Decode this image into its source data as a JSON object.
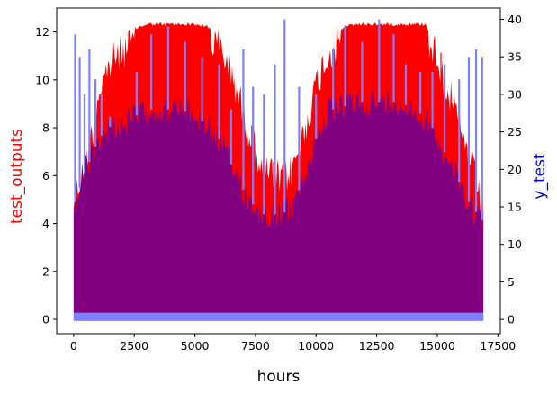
{
  "chart_data": {
    "type": "line",
    "title": "",
    "xlabel": "hours",
    "ylabel_left": "test_outputs",
    "ylabel_right": "y_test",
    "xlim": [
      -700,
      17600
    ],
    "ylim_left": [
      -0.6,
      13.0
    ],
    "ylim_right": [
      -1.9,
      41.5
    ],
    "x_ticks": [
      "0",
      "2500",
      "5000",
      "7500",
      "10000",
      "12500",
      "15000",
      "17500"
    ],
    "y_ticks_left": [
      "0",
      "2",
      "4",
      "6",
      "8",
      "10",
      "12"
    ],
    "y_ticks_right": [
      "0",
      "5",
      "10",
      "15",
      "20",
      "25",
      "30",
      "35",
      "40"
    ],
    "grid": false,
    "legend": "none",
    "colors": {
      "test_outputs": "#ff0000",
      "y_test": "#8080ff",
      "overlap": "#800080",
      "left_label": "#ff0000",
      "right_label": "#0000cc"
    },
    "series": [
      {
        "axis": "left",
        "color": "#ff0000",
        "x": [
          0,
          200,
          500,
          800,
          1000,
          1300,
          1600,
          2000,
          2500,
          3000,
          3500,
          4000,
          4500,
          5000,
          5500,
          6000,
          6300,
          6600,
          6900,
          7200,
          7500,
          7800,
          8200,
          8600,
          9000,
          9400,
          9800,
          10200,
          10600,
          11000,
          11500,
          12000,
          12500,
          13000,
          13500,
          14000,
          14500,
          14900,
          15200,
          15500,
          15800,
          16100,
          16400,
          16700,
          16900
        ],
        "upper": [
          5.5,
          6.2,
          7.2,
          8.5,
          10.0,
          10.8,
          11.4,
          11.8,
          12.2,
          12.4,
          12.4,
          12.4,
          12.4,
          12.4,
          12.3,
          12.0,
          11.4,
          10.6,
          9.6,
          8.6,
          7.6,
          7.0,
          6.6,
          6.4,
          6.8,
          8.0,
          9.6,
          11.0,
          11.8,
          12.2,
          12.4,
          12.4,
          12.4,
          12.4,
          12.4,
          12.4,
          12.4,
          11.8,
          11.0,
          10.0,
          9.0,
          8.0,
          7.0,
          6.0,
          5.2
        ],
        "lower": [
          0.2,
          0.3,
          0.4,
          0.5,
          0.6,
          0.7,
          0.8,
          0.9,
          1.0,
          1.2,
          1.3,
          1.3,
          1.3,
          1.2,
          1.1,
          0.9,
          0.8,
          0.7,
          0.6,
          0.5,
          0.4,
          0.4,
          0.4,
          0.4,
          0.4,
          0.5,
          0.7,
          0.9,
          1.1,
          1.2,
          1.3,
          1.3,
          1.3,
          1.3,
          1.3,
          1.2,
          1.1,
          0.9,
          0.8,
          0.7,
          0.6,
          0.5,
          0.4,
          0.3,
          0.3
        ]
      },
      {
        "axis": "right",
        "color": "#8080ff",
        "x": [
          0,
          200,
          500,
          800,
          1000,
          1300,
          1600,
          2000,
          2500,
          3000,
          3500,
          4000,
          4500,
          5000,
          5500,
          6000,
          6300,
          6600,
          6900,
          7200,
          7500,
          7800,
          8200,
          8600,
          9000,
          9400,
          9800,
          10200,
          10600,
          11000,
          11500,
          12000,
          12500,
          13000,
          13500,
          14000,
          14500,
          14900,
          15200,
          15500,
          15800,
          16100,
          16400,
          16700,
          16900
        ],
        "upper": [
          17,
          19,
          22,
          24,
          26,
          27,
          28,
          28,
          29,
          30,
          30,
          30,
          30,
          29,
          28,
          26,
          24,
          22,
          20,
          18,
          17,
          16,
          16,
          16,
          17,
          20,
          24,
          28,
          30,
          30,
          31,
          31,
          31,
          31,
          31,
          30,
          29,
          27,
          25,
          23,
          21,
          19,
          17,
          16,
          15
        ],
        "spikes": [
          [
            60,
            38
          ],
          [
            250,
            35
          ],
          [
            450,
            30
          ],
          [
            650,
            36
          ],
          [
            900,
            32
          ],
          [
            1150,
            30
          ],
          [
            1500,
            27
          ],
          [
            2600,
            33
          ],
          [
            3200,
            38
          ],
          [
            3900,
            39
          ],
          [
            4600,
            37
          ],
          [
            5300,
            35
          ],
          [
            6000,
            34
          ],
          [
            6500,
            28
          ],
          [
            7000,
            36
          ],
          [
            7400,
            31
          ],
          [
            7850,
            30
          ],
          [
            8300,
            34
          ],
          [
            8700,
            40
          ],
          [
            9300,
            31
          ],
          [
            10000,
            30
          ],
          [
            10700,
            36
          ],
          [
            11200,
            39
          ],
          [
            11900,
            37
          ],
          [
            12600,
            40
          ],
          [
            13200,
            38
          ],
          [
            13700,
            34
          ],
          [
            14300,
            33
          ],
          [
            14800,
            33
          ],
          [
            15300,
            34
          ],
          [
            15900,
            32
          ],
          [
            16300,
            35
          ],
          [
            16600,
            36
          ],
          [
            16850,
            35
          ]
        ]
      }
    ]
  }
}
